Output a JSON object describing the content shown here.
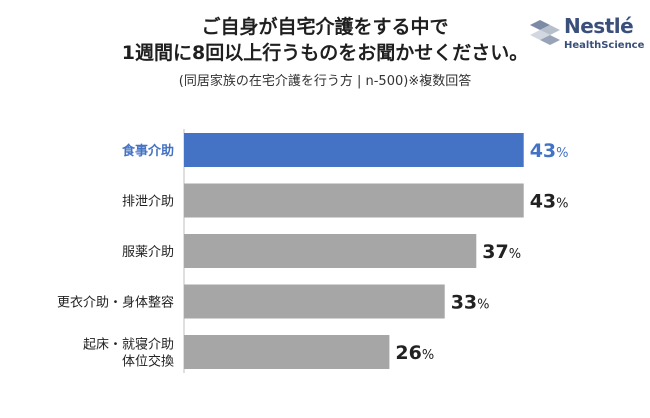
{
  "title_lines": [
    "ご自身が自宅介護をする中で",
    "1週間に8回以上行うものをお聞かせください。"
  ],
  "subtitle": "(同居家族の在宅介護を行う方 | n-500)※複数回答",
  "logo": {
    "brand": "Nestlé",
    "sub": "HealthScience"
  },
  "colors": {
    "highlight": "#4472c4",
    "bar": "#a6a6a6",
    "label": "#222222"
  },
  "chart_data": {
    "type": "bar",
    "orientation": "horizontal",
    "categories": [
      [
        "食事介助"
      ],
      [
        "排泄介助"
      ],
      [
        "服薬介助"
      ],
      [
        "更衣介助・身体整容"
      ],
      [
        "起床・就寝介助",
        "体位交換"
      ]
    ],
    "values": [
      43,
      43,
      37,
      33,
      26
    ],
    "unit": "%",
    "highlight_index": 0
  }
}
